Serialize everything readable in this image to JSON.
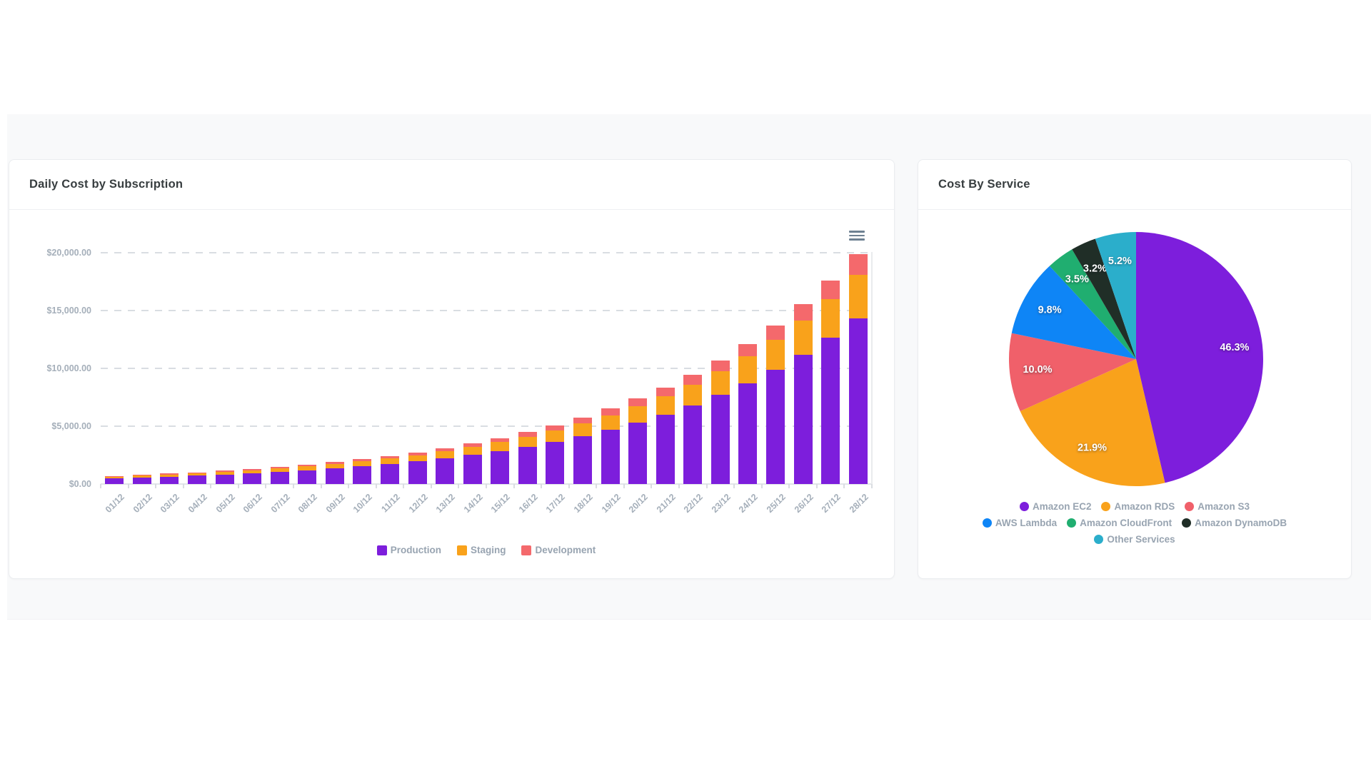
{
  "page": {
    "background": "#ffffff",
    "panel_background": "#f8f9fa"
  },
  "chart_data": [
    {
      "type": "bar",
      "stacked": true,
      "title": "Daily Cost by Subscription",
      "categories": [
        "01/12",
        "02/12",
        "03/12",
        "04/12",
        "05/12",
        "06/12",
        "07/12",
        "08/12",
        "09/12",
        "10/12",
        "11/12",
        "12/12",
        "13/12",
        "14/12",
        "15/12",
        "16/12",
        "17/12",
        "18/12",
        "19/12",
        "20/12",
        "21/12",
        "22/12",
        "23/12",
        "24/12",
        "25/12",
        "26/12",
        "27/12",
        "28/12"
      ],
      "series": [
        {
          "name": "Production",
          "color": "#7D1EDC",
          "values": [
            500,
            570,
            645,
            730,
            825,
            935,
            1060,
            1200,
            1360,
            1540,
            1740,
            1970,
            2230,
            2525,
            2860,
            3235,
            3660,
            4145,
            4690,
            5310,
            6010,
            6805,
            7705,
            8720,
            9875,
            11180,
            12650,
            14330
          ]
        },
        {
          "name": "Staging",
          "color": "#F9A21B",
          "values": [
            135,
            150,
            170,
            193,
            218,
            247,
            280,
            317,
            358,
            406,
            460,
            520,
            589,
            666,
            754,
            854,
            967,
            1094,
            1238,
            1402,
            1587,
            1796,
            2034,
            2302,
            2606,
            2950,
            3340,
            3780
          ]
        },
        {
          "name": "Development",
          "color": "#F4696C",
          "values": [
            65,
            72,
            82,
            92,
            106,
            119,
            132,
            150,
            169,
            190,
            218,
            247,
            279,
            316,
            356,
            405,
            460,
            519,
            590,
            667,
            756,
            854,
            964,
            1094,
            1234,
            1396,
            1585,
            1785
          ]
        }
      ],
      "ylabel": "",
      "xlabel": "",
      "ylim": [
        0,
        20000
      ],
      "y_ticks": [
        0,
        5000,
        10000,
        15000,
        20000
      ],
      "y_tick_labels": [
        "$0.00",
        "$5,000.00",
        "$10,000.00",
        "$15,000.00",
        "$20,000.00"
      ],
      "grid": "dashed-horizontal",
      "legend_position": "bottom",
      "axis_label_color": "#A5AFBA",
      "legend_text_color": "#98A4B1",
      "menu_icon": "hamburger-menu-icon"
    },
    {
      "type": "pie",
      "title": "Cost By Service",
      "labels": [
        "Amazon EC2",
        "Amazon RDS",
        "Amazon S3",
        "AWS Lambda",
        "Amazon CloudFront",
        "Amazon DynamoDB",
        "Other Services"
      ],
      "values": [
        46.3,
        21.9,
        10.0,
        9.8,
        3.5,
        3.2,
        5.2
      ],
      "value_labels": [
        "46.3%",
        "21.9%",
        "10.0%",
        "9.8%",
        "3.5%",
        "3.2%",
        "5.2%"
      ],
      "colors": [
        "#7D1EDC",
        "#F9A21B",
        "#F0606A",
        "#0E85F6",
        "#20AE70",
        "#202E27",
        "#2BAECB"
      ],
      "start_angle_deg": 0,
      "direction": "clockwise",
      "legend_position": "bottom",
      "data_label_color": "#FFFFFF"
    }
  ]
}
